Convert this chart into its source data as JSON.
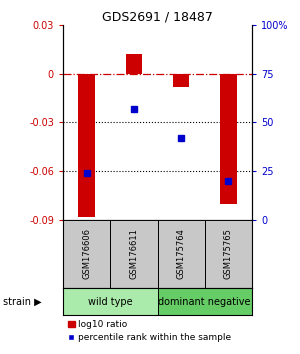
{
  "title": "GDS2691 / 18487",
  "samples": [
    "GSM176606",
    "GSM176611",
    "GSM175764",
    "GSM175765"
  ],
  "log10_ratio": [
    -0.088,
    0.012,
    -0.008,
    -0.08
  ],
  "percentile_rank": [
    24,
    57,
    42,
    20
  ],
  "ylim_left": [
    -0.09,
    0.03
  ],
  "ylim_right": [
    0,
    100
  ],
  "yticks_left": [
    -0.09,
    -0.06,
    -0.03,
    0,
    0.03
  ],
  "yticks_right": [
    0,
    25,
    50,
    75,
    100
  ],
  "ytick_labels_left": [
    "-0.09",
    "-0.06",
    "-0.03",
    "0",
    "0.03"
  ],
  "ytick_labels_right": [
    "0",
    "25",
    "50",
    "75",
    "100%"
  ],
  "groups": [
    {
      "label": "wild type",
      "samples": [
        0,
        1
      ],
      "color": "#aaeaaa"
    },
    {
      "label": "dominant negative",
      "samples": [
        2,
        3
      ],
      "color": "#66cc66"
    }
  ],
  "bar_color": "#cc0000",
  "point_color": "#0000cc",
  "zero_line_color": "#cc0000",
  "bar_width": 0.35,
  "legend_bar_label": "log10 ratio",
  "legend_point_label": "percentile rank within the sample",
  "sample_box_color": "#c8c8c8"
}
